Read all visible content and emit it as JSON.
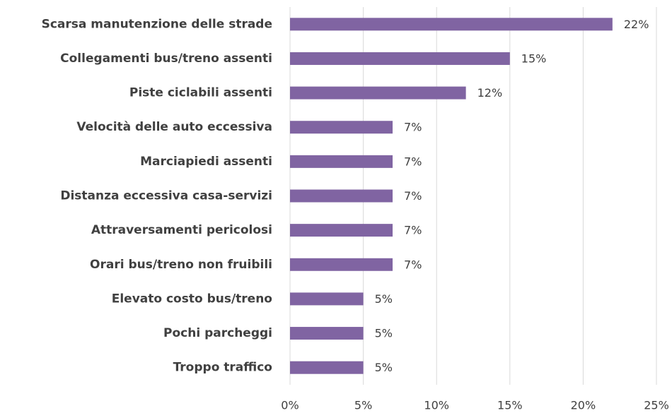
{
  "chart_data": {
    "type": "hbar",
    "categories": [
      "Scarsa manutenzione delle strade",
      "Collegamenti bus/treno assenti",
      "Piste ciclabili assenti",
      "Velocità delle auto eccessiva",
      "Marciapiedi assenti",
      "Distanza eccessiva casa-servizi",
      "Attraversamenti pericolosi",
      "Orari bus/treno non fruibili",
      "Elevato costo bus/treno",
      "Pochi parcheggi",
      "Troppo traffico"
    ],
    "values": [
      22,
      15,
      12,
      7,
      7,
      7,
      7,
      7,
      5,
      5,
      5
    ],
    "value_labels": [
      "22%",
      "15%",
      "12%",
      "7%",
      "7%",
      "7%",
      "7%",
      "7%",
      "5%",
      "5%",
      "5%"
    ],
    "color": "#8064a2",
    "xlim": [
      0,
      25
    ],
    "xticks": [
      {
        "value": 0,
        "label": "0%"
      },
      {
        "value": 5,
        "label": "5%"
      },
      {
        "value": 10,
        "label": "10%"
      },
      {
        "value": 15,
        "label": "15%"
      },
      {
        "value": 20,
        "label": "20%"
      },
      {
        "value": 25,
        "label": "25%"
      }
    ],
    "grid": true
  }
}
